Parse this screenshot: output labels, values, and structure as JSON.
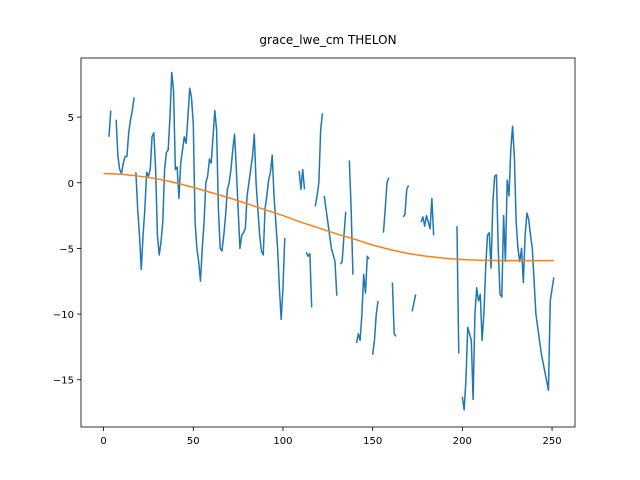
{
  "chart_data": {
    "type": "line",
    "title": "grace_lwe_cm THELON",
    "xlim": [
      -12.6,
      262.8
    ],
    "ylim": [
      -18.6,
      9.5
    ],
    "xticks": [
      0,
      50,
      100,
      150,
      200,
      250
    ],
    "yticks": [
      {
        "value": -15,
        "label": "−15"
      },
      {
        "value": -10,
        "label": "−10"
      },
      {
        "value": -5,
        "label": "−5"
      },
      0,
      5
    ],
    "series": [
      {
        "color": "#1f77b4",
        "x": [
          3,
          4,
          5.5,
          7,
          8,
          9,
          10,
          11,
          12,
          13,
          14,
          15,
          16,
          17,
          17.5,
          18,
          19,
          20,
          21,
          22,
          23,
          24,
          25,
          26,
          27,
          28,
          29,
          30,
          31,
          32,
          33,
          34,
          35,
          36,
          37,
          38,
          39,
          40,
          41,
          42,
          43,
          44,
          45,
          46,
          47,
          48,
          49,
          50,
          51,
          52,
          53,
          54,
          55,
          56,
          57,
          58,
          59,
          60,
          61,
          62,
          63,
          64,
          65,
          66,
          67,
          68,
          69,
          70,
          71,
          72,
          73,
          74,
          75,
          76,
          77,
          78,
          79,
          80,
          81,
          82,
          83,
          84,
          85,
          86,
          87,
          88,
          89,
          90,
          91,
          92,
          93,
          94,
          95,
          96,
          97,
          98,
          99,
          100,
          101,
          105,
          109,
          110,
          111,
          112,
          112.5,
          113,
          114,
          115,
          116,
          117,
          118,
          119,
          120,
          121,
          122,
          122.5,
          123,
          124,
          125,
          126,
          127,
          128,
          129,
          130,
          131,
          132,
          133,
          134,
          135,
          136,
          137,
          138,
          139,
          140,
          141,
          142,
          143,
          144,
          145,
          146,
          147,
          148,
          149,
          150,
          151,
          152,
          153,
          154,
          156,
          157,
          158,
          159,
          160,
          161,
          162,
          163,
          165,
          167,
          168,
          169,
          170,
          171,
          172,
          174,
          175,
          177,
          178,
          179,
          180,
          181,
          182,
          183,
          184,
          190,
          197,
          198,
          199,
          200,
          201,
          202,
          203,
          205,
          206,
          207,
          208,
          209,
          210,
          211,
          212,
          213,
          214,
          215,
          216,
          217,
          218,
          219,
          220,
          221,
          222,
          223,
          224,
          225,
          226,
          227,
          228,
          229,
          230,
          231,
          232,
          233,
          234,
          235,
          236,
          237,
          238,
          239,
          241,
          244,
          248,
          249,
          251
        ],
        "values": [
          3.5,
          5.5,
          null,
          4.8,
          2,
          1,
          0.7,
          1.5,
          2,
          2,
          3.8,
          4.8,
          5.5,
          6.5,
          null,
          0.8,
          -2,
          -4,
          -6.6,
          -4,
          -2,
          0.8,
          0.5,
          1,
          3.5,
          3.8,
          1,
          -4,
          -5.5,
          -4.5,
          -3,
          1,
          2.3,
          2.5,
          5,
          8.4,
          7,
          1,
          1.2,
          -1.2,
          1.5,
          2.5,
          3.5,
          3,
          5,
          7.2,
          6.5,
          4.5,
          -3,
          -5,
          -6,
          -7.5,
          -5,
          -3,
          0,
          0.5,
          1.8,
          1.5,
          3.5,
          5.5,
          4,
          -2,
          -5,
          -5.2,
          -4,
          -2.5,
          -0.5,
          0,
          1,
          2.5,
          3.7,
          1,
          -2,
          -5,
          -4,
          -3.8,
          -3.5,
          -1,
          0,
          1,
          2,
          3.7,
          0,
          -2,
          -4,
          -5.2,
          -5.5,
          -2,
          -1,
          0.2,
          0.8,
          2.1,
          -1,
          -3,
          -5,
          -8,
          -10.4,
          -8,
          -4.2,
          null,
          0.9,
          -0.5,
          1,
          -0.5,
          null,
          -5.3,
          -5.6,
          -5.4,
          -9.5,
          null,
          -1.8,
          -1,
          0,
          4,
          5.3,
          null,
          -1,
          -2,
          -3,
          -4,
          -5,
          -5.5,
          -6,
          -8.6,
          null,
          -6.2,
          -6,
          -4,
          -2.2,
          null,
          1.7,
          -2,
          -7,
          null,
          -12.2,
          -11.5,
          -12,
          -10,
          -7,
          -8.4,
          -5.6,
          -5.8,
          null,
          -13.1,
          -12,
          -10,
          -9,
          null,
          -3.8,
          -2,
          0,
          0.4,
          null,
          -7.6,
          -11.5,
          -11.7,
          null,
          -2.6,
          -2.4,
          -0.5,
          -0.2,
          null,
          -9.8,
          -8.5,
          null,
          -3,
          -2.6,
          -3.3,
          -2.5,
          -3,
          -3.5,
          -1.2,
          -4,
          null,
          -3.3,
          -13,
          null,
          -16.3,
          -17.3,
          -15,
          -11,
          -12,
          -16.5,
          -10,
          -8,
          -9,
          -8.5,
          -12,
          -10,
          -6.5,
          -4,
          -3.8,
          -6.5,
          -1.5,
          0.5,
          0.6,
          -5,
          -8.5,
          -8.7,
          -2.5,
          -6,
          0.2,
          -1,
          2.5,
          4.3,
          2,
          -3,
          -5,
          -6,
          -5,
          -7.6,
          -4,
          -2.3,
          -2.8,
          -4,
          -5,
          -10,
          -13,
          -15.8,
          -9,
          -7.2
        ]
      },
      {
        "color": "#ff7f0e",
        "x": [
          0,
          10,
          20,
          30,
          40,
          50,
          60,
          70,
          80,
          90,
          100,
          110,
          120,
          130,
          140,
          150,
          160,
          170,
          180,
          190,
          200,
          210,
          220,
          230,
          240,
          251
        ],
        "values": [
          0.7,
          0.65,
          0.5,
          0.3,
          0.0,
          -0.35,
          -0.75,
          -1.15,
          -1.6,
          -2.05,
          -2.5,
          -3.0,
          -3.45,
          -3.9,
          -4.3,
          -4.75,
          -5.1,
          -5.4,
          -5.6,
          -5.75,
          -5.85,
          -5.9,
          -5.92,
          -5.93,
          -5.93,
          -5.93
        ]
      }
    ]
  }
}
